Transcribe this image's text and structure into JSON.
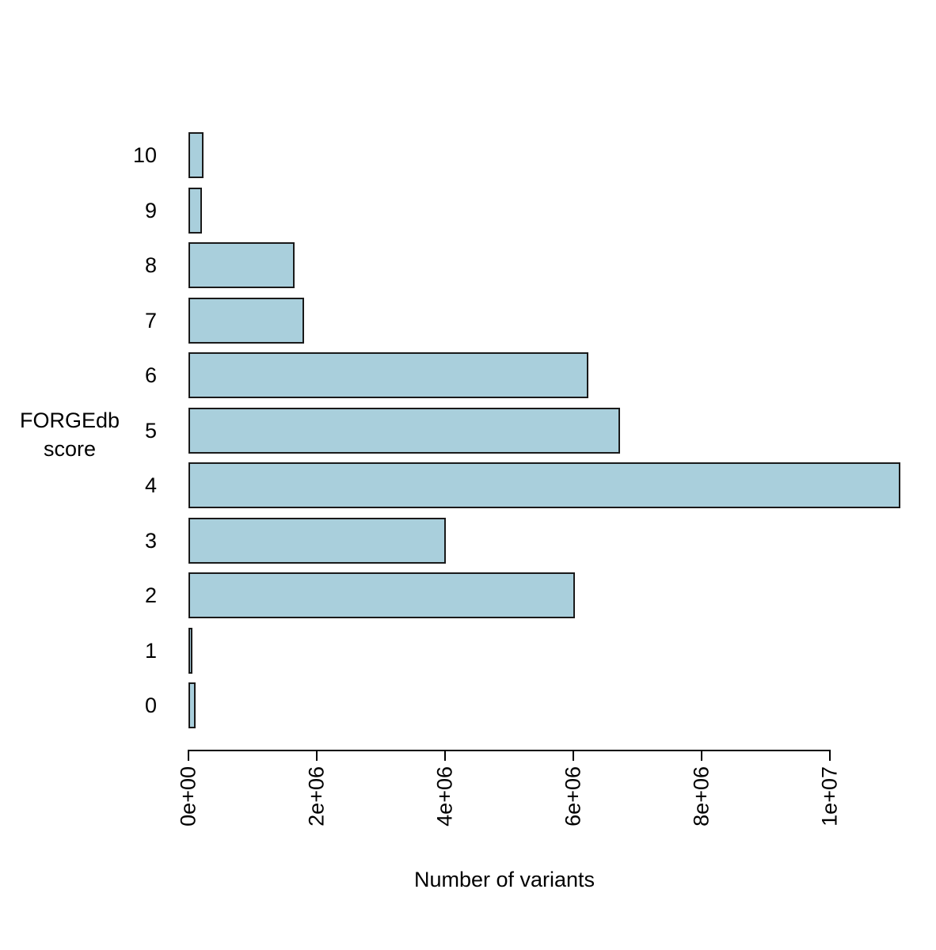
{
  "chart_data": {
    "type": "bar",
    "orientation": "horizontal",
    "title": "",
    "xlabel": "Number of variants",
    "ylabel": "FORGEdb score",
    "ylabel_lines": [
      "FORGEdb",
      "score"
    ],
    "categories": [
      "10",
      "9",
      "8",
      "7",
      "6",
      "5",
      "4",
      "3",
      "2",
      "1",
      "0"
    ],
    "values": [
      240000,
      210000,
      1650000,
      1800000,
      6230000,
      6730000,
      11100000,
      4010000,
      6020000,
      60000,
      110000
    ],
    "x_ticks": {
      "values": [
        0,
        2000000,
        4000000,
        6000000,
        8000000,
        10000000
      ],
      "labels": [
        "0e+00",
        "2e+06",
        "4e+06",
        "6e+06",
        "8e+06",
        "1e+07"
      ]
    },
    "xlim": [
      0,
      11100000
    ],
    "grid": false,
    "legend": false,
    "colors": {
      "bar_fill": "#A9CFDC",
      "bar_stroke": "#1A1A1A",
      "axis": "#000000",
      "text": "#000000",
      "background": "#FFFFFF"
    }
  }
}
